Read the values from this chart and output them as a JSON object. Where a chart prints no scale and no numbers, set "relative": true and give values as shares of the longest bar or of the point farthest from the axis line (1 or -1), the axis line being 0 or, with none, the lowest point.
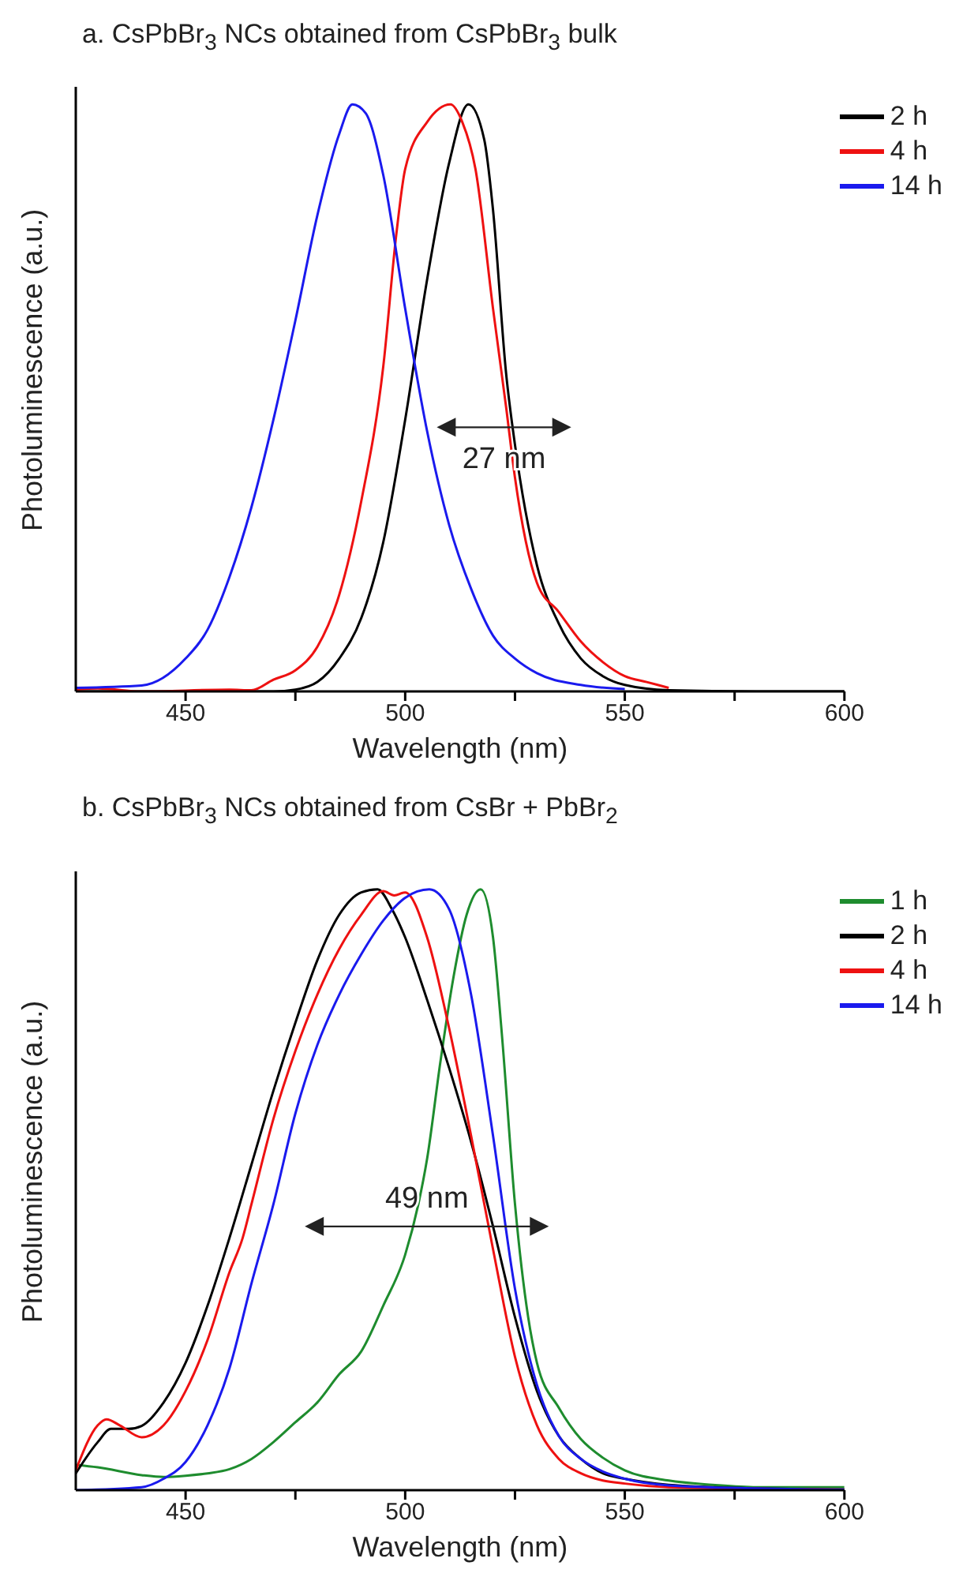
{
  "chart_data": [
    {
      "type": "line",
      "title": "a. CsPbBr$_{3}$ NCs obtained from CsPbBr$_{3}$ bulk",
      "xlabel": "Wavelength (nm)",
      "ylabel": "Photoluminescence (a.u.)",
      "relative": true,
      "legend": "top right",
      "xlim": [
        425,
        600
      ],
      "xticks": [
        450,
        {
          "value": 475,
          "label": null
        },
        500,
        {
          "value": 525,
          "label": null
        },
        550,
        {
          "value": 575,
          "label": null
        },
        600
      ],
      "annotations": [
        {
          "text": "27 nm",
          "x": 524.5,
          "y": 0.45
        }
      ],
      "series": [
        {
          "name": "2 h",
          "color": "#000000",
          "x": [
            425,
            470,
            475,
            480,
            485,
            490,
            495,
            500,
            505,
            510,
            514.4,
            518,
            520,
            523,
            525,
            530,
            535,
            540,
            545,
            550,
            560,
            580,
            600
          ],
          "values": [
            0,
            0,
            0.003,
            0.016,
            0.056,
            0.125,
            0.254,
            0.463,
            0.702,
            0.9,
            1,
            0.94,
            0.82,
            0.54,
            0.42,
            0.215,
            0.115,
            0.056,
            0.026,
            0.011,
            0.002,
            0,
            0
          ]
        },
        {
          "name": "4 h",
          "color": "#ee1111",
          "x": [
            425,
            430,
            440,
            460,
            465,
            470,
            475,
            480,
            485,
            490,
            495,
            498,
            500,
            505,
            510.3,
            513,
            516,
            520,
            523,
            525,
            530,
            535,
            540,
            545,
            550,
            555,
            560
          ],
          "values": [
            0.003,
            0.005,
            0,
            0.003,
            0.002,
            0.02,
            0.036,
            0.076,
            0.165,
            0.324,
            0.553,
            0.78,
            0.89,
            0.97,
            1,
            0.97,
            0.89,
            0.652,
            0.483,
            0.364,
            0.185,
            0.135,
            0.085,
            0.05,
            0.026,
            0.016,
            0.006
          ]
        },
        {
          "name": "14 h",
          "color": "#1a1aee",
          "x": [
            425,
            440,
            450,
            455,
            460,
            465,
            470,
            475,
            480,
            485,
            488,
            491,
            495,
            500,
            505,
            510,
            515,
            520,
            525,
            530,
            540,
            550
          ],
          "values": [
            0.006,
            0.01,
            0.056,
            0.105,
            0.195,
            0.314,
            0.463,
            0.632,
            0.811,
            0.95,
            1,
            0.985,
            0.88,
            0.652,
            0.443,
            0.284,
            0.175,
            0.095,
            0.056,
            0.031,
            0.011,
            0.004
          ]
        }
      ]
    },
    {
      "type": "line",
      "title": "b. CsPbBr$_{3}$ NCs obtained from CsBr + PbBr$_{2}$",
      "xlabel": "Wavelength (nm)",
      "ylabel": "Photoluminescence (a.u.)",
      "relative": true,
      "legend": "top right",
      "xlim": [
        425,
        600
      ],
      "xticks": [
        450,
        {
          "value": 475,
          "label": null
        },
        500,
        {
          "value": 525,
          "label": null
        },
        550,
        {
          "value": 575,
          "label": null
        },
        600
      ],
      "annotations": [
        {
          "text": "49 nm",
          "x": 520,
          "y": 0.439
        }
      ],
      "series": [
        {
          "name": "1 h",
          "color": "#1e8c2e",
          "x": [
            425,
            430,
            440,
            445,
            450,
            455,
            460,
            465,
            470,
            475,
            480,
            485,
            490,
            495,
            500,
            503,
            505,
            508,
            511,
            514,
            517.2,
            520,
            522,
            525,
            528,
            530,
            535,
            540,
            545,
            550,
            560,
            570,
            580,
            600
          ],
          "values": [
            0.042,
            0.038,
            0.025,
            0.022,
            0.024,
            0.028,
            0.035,
            0.052,
            0.08,
            0.113,
            0.146,
            0.193,
            0.231,
            0.307,
            0.392,
            0.476,
            0.552,
            0.712,
            0.854,
            0.958,
            1,
            0.92,
            0.76,
            0.476,
            0.288,
            0.212,
            0.137,
            0.085,
            0.054,
            0.033,
            0.016,
            0.009,
            0.005,
            0.005
          ]
        },
        {
          "name": "2 h",
          "color": "#000000",
          "x": [
            425,
            430,
            433,
            437,
            440,
            445,
            450,
            455,
            460,
            465,
            470,
            475,
            480,
            485,
            490,
            493.7,
            497,
            500,
            505,
            510,
            515,
            520,
            525,
            530,
            535,
            540,
            545,
            550,
            560,
            580,
            600
          ],
          "values": [
            0.028,
            0.08,
            0.102,
            0.102,
            0.107,
            0.146,
            0.212,
            0.307,
            0.42,
            0.542,
            0.665,
            0.778,
            0.882,
            0.958,
            0.995,
            1,
            0.967,
            0.92,
            0.816,
            0.703,
            0.58,
            0.439,
            0.288,
            0.165,
            0.09,
            0.052,
            0.028,
            0.019,
            0.009,
            0.003,
            0.001
          ]
        },
        {
          "name": "4 h",
          "color": "#ee1111",
          "x": [
            425,
            430,
            432,
            435,
            440,
            445,
            450,
            455,
            460,
            463,
            465,
            470,
            475,
            480,
            485,
            490,
            495,
            497.5,
            500,
            505,
            510,
            515,
            520,
            525,
            530,
            535,
            540,
            545,
            550,
            560,
            600
          ],
          "values": [
            0.033,
            0.108,
            0.118,
            0.108,
            0.088,
            0.108,
            0.165,
            0.25,
            0.363,
            0.42,
            0.476,
            0.618,
            0.731,
            0.825,
            0.901,
            0.958,
            0.997,
            0.99,
            0.995,
            0.92,
            0.769,
            0.59,
            0.401,
            0.222,
            0.108,
            0.052,
            0.028,
            0.016,
            0.011,
            0.005,
            0.001
          ]
        },
        {
          "name": "14 h",
          "color": "#1a1aee",
          "x": [
            425,
            440,
            445,
            450,
            455,
            460,
            465,
            470,
            475,
            480,
            485,
            490,
            495,
            500,
            505.5,
            510,
            515,
            520,
            525,
            530,
            535,
            540,
            545,
            550,
            560,
            580,
            600
          ],
          "values": [
            0,
            0.005,
            0.019,
            0.047,
            0.108,
            0.203,
            0.344,
            0.476,
            0.627,
            0.741,
            0.825,
            0.892,
            0.948,
            0.986,
            1,
            0.967,
            0.825,
            0.59,
            0.335,
            0.175,
            0.09,
            0.052,
            0.031,
            0.019,
            0.008,
            0.003,
            0.001
          ]
        }
      ]
    }
  ]
}
